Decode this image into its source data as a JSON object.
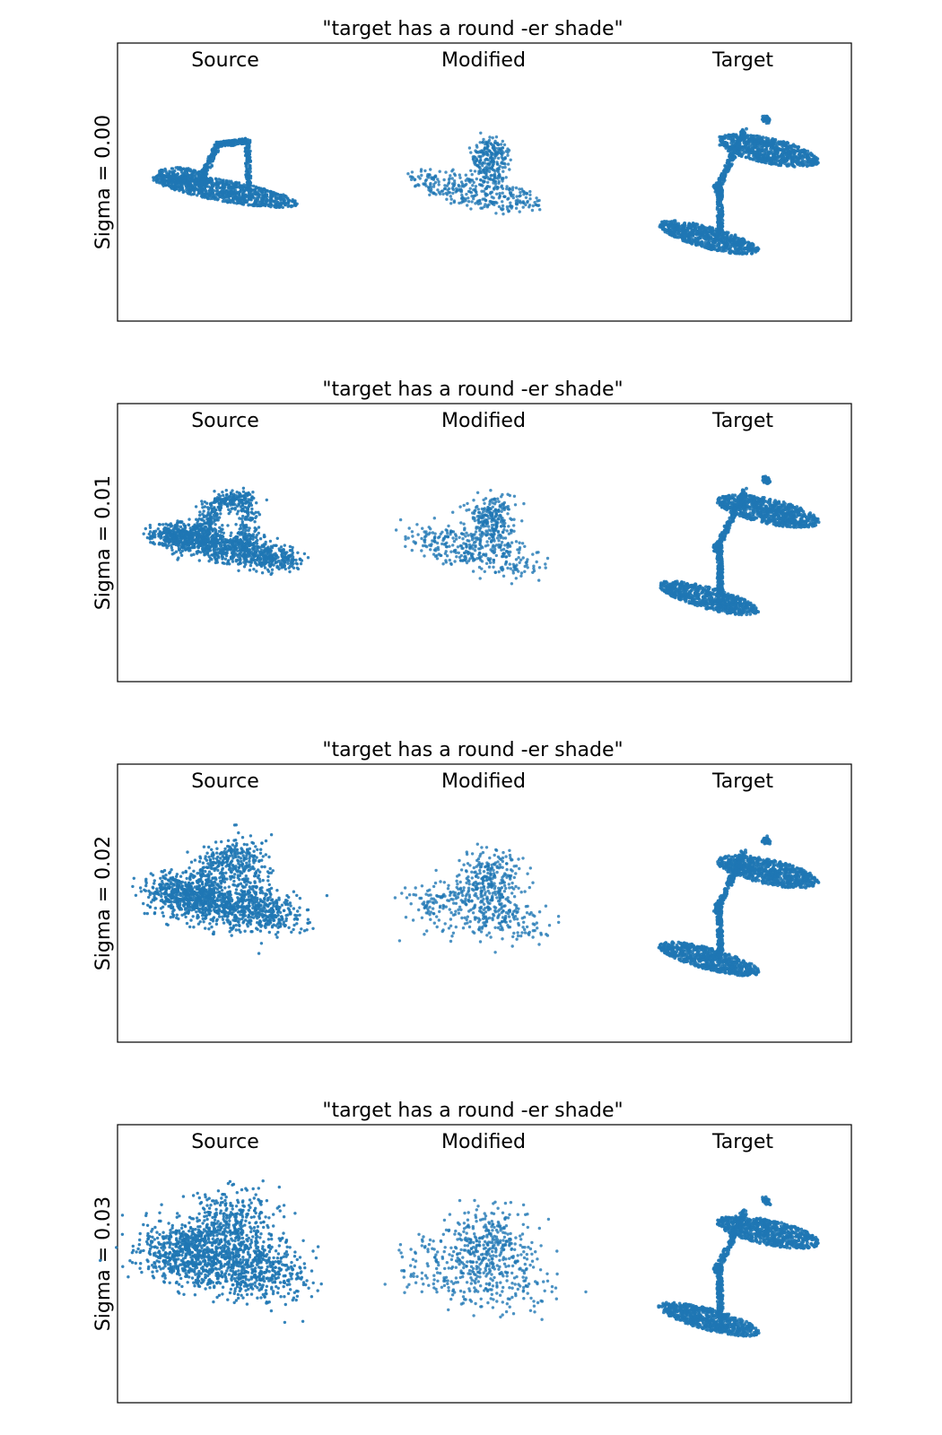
{
  "chart_data": [
    {
      "type": "scatter",
      "title": "\"target has a round -er shade\"",
      "ylabel": "Sigma = 0.00",
      "columns": [
        "Source",
        "Modified",
        "Target"
      ],
      "sigma": 0.0,
      "grid": false,
      "legend": "none"
    },
    {
      "type": "scatter",
      "title": "\"target has a round -er shade\"",
      "ylabel": "Sigma = 0.01",
      "columns": [
        "Source",
        "Modified",
        "Target"
      ],
      "sigma": 0.01,
      "grid": false,
      "legend": "none"
    },
    {
      "type": "scatter",
      "title": "\"target has a round -er shade\"",
      "ylabel": "Sigma = 0.02",
      "columns": [
        "Source",
        "Modified",
        "Target"
      ],
      "sigma": 0.02,
      "grid": false,
      "legend": "none"
    },
    {
      "type": "scatter",
      "title": "\"target has a round -er shade\"",
      "ylabel": "Sigma = 0.03",
      "columns": [
        "Source",
        "Modified",
        "Target"
      ],
      "sigma": 0.03,
      "grid": false,
      "legend": "none"
    }
  ],
  "colors": {
    "points": "#1f77b4",
    "frame": "#000000"
  }
}
